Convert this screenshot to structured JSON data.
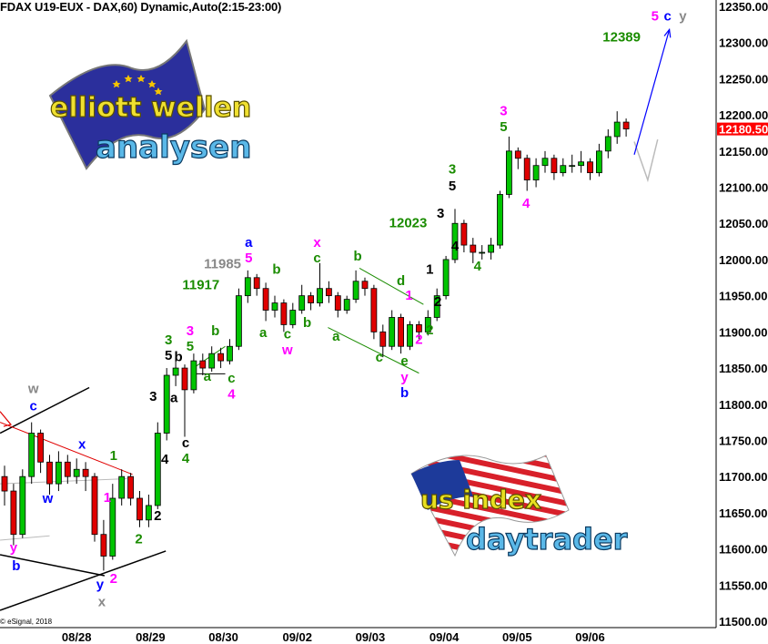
{
  "header": {
    "title": "FDAX U19-EUX - DAX,60) Dynamic,Auto(2:15-23:00)",
    "copyright": "© eSignal, 2018"
  },
  "logos": {
    "top": {
      "line1": "elliott wellen",
      "line2": "analysen",
      "flag": "eu-flag"
    },
    "bottom": {
      "line1": "us index",
      "line2": "daytrader",
      "flag": "us-flag"
    }
  },
  "colors": {
    "up": "#00c400",
    "down": "#e00000",
    "green": "#1a8c00",
    "magenta": "#ff00ff",
    "blue": "#0000ff",
    "gray": "#888888",
    "black": "#000000",
    "last_price_bg": "#ff0000"
  },
  "chart_data": {
    "type": "candlestick",
    "symbol": "FDAX U19-EUX",
    "interval": "60",
    "ylim": [
      11500,
      12350
    ],
    "y_ticks": [
      "12350.00",
      "12300.00",
      "12250.00",
      "12200.00",
      "12150.00",
      "12100.00",
      "12050.00",
      "12000.00",
      "11950.00",
      "11900.00",
      "11850.00",
      "11800.00",
      "11750.00",
      "11700.00",
      "11650.00",
      "11600.00",
      "11550.00",
      "11500.00"
    ],
    "x_ticks": [
      {
        "label": "08/28",
        "i": 8
      },
      {
        "label": "08/29",
        "i": 16.2
      },
      {
        "label": "08/30",
        "i": 24.3
      },
      {
        "label": "09/02",
        "i": 32.5
      },
      {
        "label": "09/03",
        "i": 40.6
      },
      {
        "label": "09/04",
        "i": 48.8
      },
      {
        "label": "09/05",
        "i": 56.9
      },
      {
        "label": "09/06",
        "i": 65
      }
    ],
    "last_price": "12180.50",
    "candles": [
      [
        11700,
        11715,
        11660,
        11680
      ],
      [
        11680,
        11690,
        11605,
        11620
      ],
      [
        11620,
        11710,
        11615,
        11700
      ],
      [
        11700,
        11775,
        11690,
        11760
      ],
      [
        11760,
        11765,
        11705,
        11720
      ],
      [
        11720,
        11730,
        11675,
        11690
      ],
      [
        11690,
        11735,
        11680,
        11720
      ],
      [
        11720,
        11730,
        11690,
        11700
      ],
      [
        11700,
        11725,
        11690,
        11710
      ],
      [
        11710,
        11720,
        11680,
        11700
      ],
      [
        11700,
        11705,
        11610,
        11620
      ],
      [
        11620,
        11640,
        11570,
        11590
      ],
      [
        11590,
        11690,
        11585,
        11670
      ],
      [
        11670,
        11710,
        11660,
        11700
      ],
      [
        11700,
        11705,
        11660,
        11670
      ],
      [
        11670,
        11680,
        11630,
        11640
      ],
      [
        11640,
        11675,
        11630,
        11660
      ],
      [
        11660,
        11775,
        11655,
        11760
      ],
      [
        11760,
        11850,
        11750,
        11840
      ],
      [
        11840,
        11865,
        11825,
        11850
      ],
      [
        11850,
        11855,
        11755,
        11820
      ],
      [
        11820,
        11870,
        11815,
        11860
      ],
      [
        11860,
        11870,
        11840,
        11850
      ],
      [
        11850,
        11880,
        11845,
        11870
      ],
      [
        11870,
        11878,
        11850,
        11860
      ],
      [
        11860,
        11890,
        11855,
        11880
      ],
      [
        11880,
        11960,
        11875,
        11950
      ],
      [
        11950,
        11985,
        11940,
        11975
      ],
      [
        11975,
        11980,
        11950,
        11960
      ],
      [
        11960,
        11968,
        11915,
        11930
      ],
      [
        11930,
        11950,
        11920,
        11940
      ],
      [
        11940,
        11945,
        11900,
        11910
      ],
      [
        11910,
        11940,
        11905,
        11930
      ],
      [
        11930,
        11965,
        11925,
        11950
      ],
      [
        11950,
        11955,
        11930,
        11940
      ],
      [
        11940,
        11995,
        11935,
        11960
      ],
      [
        11960,
        11970,
        11940,
        11950
      ],
      [
        11950,
        11955,
        11920,
        11930
      ],
      [
        11930,
        11950,
        11925,
        11945
      ],
      [
        11945,
        11985,
        11940,
        11970
      ],
      [
        11970,
        11975,
        11950,
        11960
      ],
      [
        11960,
        11965,
        11890,
        11900
      ],
      [
        11900,
        11910,
        11865,
        11880
      ],
      [
        11880,
        11930,
        11875,
        11920
      ],
      [
        11920,
        11925,
        11870,
        11880
      ],
      [
        11880,
        11915,
        11875,
        11910
      ],
      [
        11910,
        11915,
        11890,
        11900
      ],
      [
        11900,
        11930,
        11895,
        11920
      ],
      [
        11920,
        11960,
        11915,
        11950
      ],
      [
        11950,
        12005,
        11945,
        12000
      ],
      [
        12000,
        12070,
        11995,
        12050
      ],
      [
        12050,
        12055,
        12010,
        12020
      ],
      [
        12020,
        12030,
        11995,
        12010
      ],
      [
        12010,
        12020,
        12000,
        12010
      ],
      [
        12010,
        12030,
        12000,
        12020
      ],
      [
        12020,
        12095,
        12015,
        12090
      ],
      [
        12090,
        12170,
        12085,
        12150
      ],
      [
        12150,
        12155,
        12125,
        12140
      ],
      [
        12140,
        12145,
        12095,
        12110
      ],
      [
        12110,
        12140,
        12100,
        12130
      ],
      [
        12130,
        12150,
        12120,
        12140
      ],
      [
        12140,
        12145,
        12110,
        12120
      ],
      [
        12120,
        12140,
        12115,
        12130
      ],
      [
        12130,
        12145,
        12120,
        12130
      ],
      [
        12130,
        12150,
        12120,
        12135
      ],
      [
        12135,
        12140,
        12110,
        12120
      ],
      [
        12120,
        12160,
        12115,
        12150
      ],
      [
        12150,
        12180,
        12140,
        12170
      ],
      [
        12170,
        12205,
        12160,
        12190
      ],
      [
        12190,
        12195,
        12170,
        12180.5
      ]
    ],
    "labels": [
      {
        "t": "5",
        "i": 72.2,
        "p": 12337,
        "c": "magenta",
        "s": 17
      },
      {
        "t": "c",
        "i": 73.6,
        "p": 12337,
        "c": "blue",
        "s": 19
      },
      {
        "t": "y",
        "i": 75.3,
        "p": 12337,
        "c": "gray",
        "s": 19
      },
      {
        "t": "12389",
        "i": 68.5,
        "p": 12308,
        "c": "green"
      },
      {
        "t": "3",
        "i": 55.4,
        "p": 12206,
        "c": "magenta"
      },
      {
        "t": "5",
        "i": 55.4,
        "p": 12189,
        "c": "green"
      },
      {
        "t": "4",
        "i": 57.9,
        "p": 12078,
        "c": "magenta"
      },
      {
        "t": "3",
        "i": 49.7,
        "p": 12125,
        "c": "green"
      },
      {
        "t": "5",
        "i": 49.7,
        "p": 12102,
        "c": "black"
      },
      {
        "t": "3",
        "i": 48.4,
        "p": 12064,
        "c": "black"
      },
      {
        "t": "12023",
        "i": 44.8,
        "p": 12051,
        "c": "green"
      },
      {
        "t": "4",
        "i": 50,
        "p": 12019,
        "c": "black"
      },
      {
        "t": "4",
        "i": 52.5,
        "p": 11991,
        "c": "green"
      },
      {
        "t": "1",
        "i": 47.2,
        "p": 11987,
        "c": "black"
      },
      {
        "t": "2",
        "i": 48.1,
        "p": 11942,
        "c": "black"
      },
      {
        "t": "2",
        "i": 47.2,
        "p": 11903,
        "c": "green"
      },
      {
        "t": "2",
        "i": 46,
        "p": 11890,
        "c": "magenta"
      },
      {
        "t": "1",
        "i": 44.9,
        "p": 11951,
        "c": "magenta"
      },
      {
        "t": "d",
        "i": 44,
        "p": 11971,
        "c": "green"
      },
      {
        "t": "b",
        "i": 39.2,
        "p": 12005,
        "c": "green"
      },
      {
        "t": "x",
        "i": 34.7,
        "p": 12024,
        "c": "magenta"
      },
      {
        "t": "c",
        "i": 34.7,
        "p": 12010,
        "c": "green"
      },
      {
        "t": "a",
        "i": 36.8,
        "p": 11894,
        "c": "green"
      },
      {
        "t": "c",
        "i": 41.6,
        "p": 11865,
        "c": "green"
      },
      {
        "t": "e",
        "i": 44.4,
        "p": 11860,
        "c": "green"
      },
      {
        "t": "y",
        "i": 44.4,
        "p": 11844,
        "c": "magenta"
      },
      {
        "t": "b",
        "i": 44.4,
        "p": 11825,
        "c": "blue",
        "s": 17
      },
      {
        "t": "b",
        "i": 33.6,
        "p": 11913,
        "c": "green"
      },
      {
        "t": "c",
        "i": 31.4,
        "p": 11897,
        "c": "green"
      },
      {
        "t": "w",
        "i": 31.4,
        "p": 11880,
        "c": "magenta"
      },
      {
        "t": "b",
        "i": 30.2,
        "p": 11987,
        "c": "green"
      },
      {
        "t": "a",
        "i": 28.7,
        "p": 11899,
        "c": "green"
      },
      {
        "t": "a",
        "i": 27.1,
        "p": 12024,
        "c": "blue"
      },
      {
        "t": "5",
        "i": 27.1,
        "p": 12005,
        "c": "magenta"
      },
      {
        "t": "11985",
        "i": 24.2,
        "p": 11994,
        "c": "gray",
        "s": 11
      },
      {
        "t": "11917",
        "i": 21.8,
        "p": 11965,
        "c": "green"
      },
      {
        "t": "3",
        "i": 20.6,
        "p": 11902,
        "c": "magenta"
      },
      {
        "t": "5",
        "i": 20.6,
        "p": 11884,
        "c": "green"
      },
      {
        "t": "3",
        "i": 18.2,
        "p": 11889,
        "c": "green"
      },
      {
        "t": "5",
        "i": 18.2,
        "p": 11870,
        "c": "black"
      },
      {
        "t": "b",
        "i": 19.3,
        "p": 11866,
        "c": "black"
      },
      {
        "t": "b",
        "i": 23.4,
        "p": 11902,
        "c": "green"
      },
      {
        "t": "a",
        "i": 22.5,
        "p": 11839,
        "c": "green"
      },
      {
        "t": "c",
        "i": 25.2,
        "p": 11836,
        "c": "green"
      },
      {
        "t": "4",
        "i": 25.2,
        "p": 11817,
        "c": "magenta"
      },
      {
        "t": "3",
        "i": 16.5,
        "p": 11811,
        "c": "black"
      },
      {
        "t": "a",
        "i": 18.8,
        "p": 11809,
        "c": "black"
      },
      {
        "t": "4",
        "i": 17.8,
        "p": 11724,
        "c": "black"
      },
      {
        "t": "c",
        "i": 20.1,
        "p": 11747,
        "c": "black"
      },
      {
        "t": "4",
        "i": 20.1,
        "p": 11729,
        "c": "green"
      },
      {
        "t": "1",
        "i": 12.1,
        "p": 11729,
        "c": "green"
      },
      {
        "t": "1",
        "i": 11.4,
        "p": 11671,
        "c": "magenta"
      },
      {
        "t": "2",
        "i": 17,
        "p": 11646,
        "c": "black"
      },
      {
        "t": "2",
        "i": 14.9,
        "p": 11614,
        "c": "green"
      },
      {
        "t": "y",
        "i": 10.6,
        "p": 11551,
        "c": "blue",
        "s": 18
      },
      {
        "t": "2",
        "i": 12.1,
        "p": 11559,
        "c": "magenta"
      },
      {
        "t": "x",
        "i": 10.8,
        "p": 11527,
        "c": "gray",
        "s": 18
      },
      {
        "t": "x",
        "i": 8.6,
        "p": 11745,
        "c": "blue",
        "s": 17
      },
      {
        "t": "w",
        "i": 4.8,
        "p": 11670,
        "c": "blue",
        "s": 17
      },
      {
        "t": "w",
        "i": 3.2,
        "p": 11822,
        "c": "gray",
        "s": 18
      },
      {
        "t": "c",
        "i": 3.2,
        "p": 11798,
        "c": "blue",
        "s": 18
      },
      {
        "t": "y",
        "i": 1,
        "p": 11602,
        "c": "magenta",
        "s": 13
      },
      {
        "t": "b",
        "i": 1.3,
        "p": 11577,
        "c": "blue",
        "s": 17
      }
    ],
    "lines": [
      {
        "c": "black",
        "w": 1.5,
        "pts": [
          [
            -0.5,
            11760
          ],
          [
            9.4,
            11823
          ]
        ]
      },
      {
        "c": "black",
        "w": 1.5,
        "pts": [
          [
            -0.5,
            11515
          ],
          [
            17.9,
            11597
          ]
        ]
      },
      {
        "c": "black",
        "w": 1.5,
        "pts": [
          [
            -0.5,
            11592
          ],
          [
            11.1,
            11563
          ]
        ]
      },
      {
        "c": "#e00000",
        "w": 1,
        "pts": [
          [
            -0.5,
            11775
          ],
          [
            14.2,
            11703
          ]
        ]
      },
      {
        "c": "#bbbbbb",
        "w": 1,
        "pts": [
          [
            -0.5,
            11690
          ],
          [
            13.6,
            11697
          ]
        ]
      },
      {
        "c": "#bbbbbb",
        "w": 1,
        "pts": [
          [
            -0.5,
            11612
          ],
          [
            5,
            11618
          ]
        ]
      },
      {
        "c": "#1a8c00",
        "w": 1,
        "pts": [
          [
            35.9,
            11906
          ],
          [
            46,
            11843
          ]
        ]
      },
      {
        "c": "#1a8c00",
        "w": 1,
        "pts": [
          [
            39.4,
            11988
          ],
          [
            46.5,
            11938
          ]
        ]
      },
      {
        "c": "#1a8c00",
        "w": 1,
        "pts": [
          [
            21.2,
            11852
          ],
          [
            24.5,
            11880
          ]
        ]
      },
      {
        "c": "black",
        "w": 1,
        "pts": [
          [
            21.2,
            11842
          ],
          [
            24.5,
            11842
          ]
        ]
      },
      {
        "c": "#bbbbbb",
        "w": 1.5,
        "pts": [
          [
            69.9,
            12163
          ],
          [
            71.4,
            12110
          ],
          [
            72.5,
            12166
          ]
        ]
      }
    ],
    "arrow": {
      "c": "blue",
      "pts": [
        [
          69.9,
          12145
        ],
        [
          73.8,
          12318
        ]
      ]
    },
    "red_arrow": {
      "pts": [
        [
          -0.5,
          11790
        ],
        [
          0.7,
          11782
        ]
      ]
    }
  }
}
